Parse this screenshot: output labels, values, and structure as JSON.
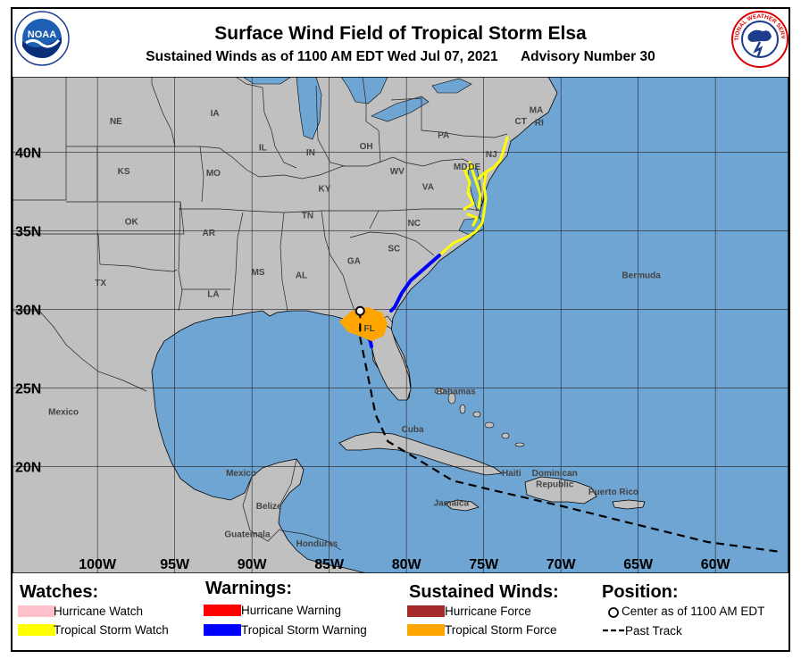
{
  "header": {
    "title": "Surface Wind Field of Tropical Storm Elsa",
    "subtitle": "Sustained Winds as of 1100 AM EDT Wed Jul 07, 2021      Advisory Number 30",
    "left_logo_text": "NOAA",
    "right_logo_text": "NATIONAL WEATHER SERVICE"
  },
  "map": {
    "lat_labels": [
      {
        "lat": 40,
        "label": "40N"
      },
      {
        "lat": 35,
        "label": "35N"
      },
      {
        "lat": 30,
        "label": "30N"
      },
      {
        "lat": 25,
        "label": "25N"
      },
      {
        "lat": 20,
        "label": "20N"
      }
    ],
    "lon_labels": [
      {
        "lon": -100,
        "label": "100W"
      },
      {
        "lon": -95,
        "label": "95W"
      },
      {
        "lon": -90,
        "label": "90W"
      },
      {
        "lon": -85,
        "label": "85W"
      },
      {
        "lon": -80,
        "label": "80W"
      },
      {
        "lon": -75,
        "label": "75W"
      },
      {
        "lon": -70,
        "label": "70W"
      },
      {
        "lon": -65,
        "label": "65W"
      },
      {
        "lon": -60,
        "label": "60W"
      }
    ],
    "place_labels": [
      {
        "name": "NE",
        "lon": -98.8,
        "lat": 41.8
      },
      {
        "name": "IA",
        "lon": -92.4,
        "lat": 42.3
      },
      {
        "name": "IL",
        "lon": -89.3,
        "lat": 40.1
      },
      {
        "name": "IN",
        "lon": -86.2,
        "lat": 39.8
      },
      {
        "name": "OH",
        "lon": -82.6,
        "lat": 40.2
      },
      {
        "name": "PA",
        "lon": -77.6,
        "lat": 40.9
      },
      {
        "name": "NJ",
        "lon": -74.5,
        "lat": 39.7
      },
      {
        "name": "MA",
        "lon": -71.6,
        "lat": 42.5
      },
      {
        "name": "CT",
        "lon": -72.6,
        "lat": 41.8
      },
      {
        "name": "RI",
        "lon": -71.4,
        "lat": 41.7
      },
      {
        "name": "MD",
        "lon": -76.5,
        "lat": 38.9
      },
      {
        "name": "DE",
        "lon": -75.6,
        "lat": 38.9
      },
      {
        "name": "KS",
        "lon": -98.3,
        "lat": 38.6
      },
      {
        "name": "MO",
        "lon": -92.5,
        "lat": 38.5
      },
      {
        "name": "WV",
        "lon": -80.6,
        "lat": 38.6
      },
      {
        "name": "VA",
        "lon": -78.6,
        "lat": 37.6
      },
      {
        "name": "KY",
        "lon": -85.3,
        "lat": 37.5
      },
      {
        "name": "TN",
        "lon": -86.4,
        "lat": 35.8
      },
      {
        "name": "NC",
        "lon": -79.5,
        "lat": 35.3
      },
      {
        "name": "OK",
        "lon": -97.8,
        "lat": 35.4
      },
      {
        "name": "AR",
        "lon": -92.8,
        "lat": 34.7
      },
      {
        "name": "SC",
        "lon": -80.8,
        "lat": 33.7
      },
      {
        "name": "TX",
        "lon": -99.8,
        "lat": 31.5
      },
      {
        "name": "MS",
        "lon": -89.6,
        "lat": 32.2
      },
      {
        "name": "AL",
        "lon": -86.8,
        "lat": 32.0
      },
      {
        "name": "GA",
        "lon": -83.4,
        "lat": 32.9
      },
      {
        "name": "LA",
        "lon": -92.5,
        "lat": 30.8
      },
      {
        "name": "FL",
        "lon": -82.4,
        "lat": 28.6
      },
      {
        "name": "Bermuda",
        "lon": -64.8,
        "lat": 32.0
      },
      {
        "name": "Bahamas",
        "lon": -76.8,
        "lat": 24.6
      },
      {
        "name": "Mexico",
        "lon": -102.2,
        "lat": 23.3
      },
      {
        "name": "Cuba",
        "lon": -79.6,
        "lat": 22.2
      },
      {
        "name": "Haiti",
        "lon": -73.2,
        "lat": 19.4
      },
      {
        "name": "Dominican",
        "lon": -70.4,
        "lat": 19.4
      },
      {
        "name": "Republic",
        "lon": -70.4,
        "lat": 18.7
      },
      {
        "name": "Puerto Rico",
        "lon": -66.6,
        "lat": 18.2
      },
      {
        "name": "Jamaica",
        "lon": -77.1,
        "lat": 17.5
      },
      {
        "name": "Mexico",
        "lon": -90.7,
        "lat": 19.4
      },
      {
        "name": "Belize",
        "lon": -88.9,
        "lat": 17.3
      },
      {
        "name": "Guatemala",
        "lon": -90.3,
        "lat": 15.5
      },
      {
        "name": "Honduras",
        "lon": -85.8,
        "lat": 14.9
      }
    ],
    "storm_center": {
      "lon": -83.0,
      "lat": 29.9
    },
    "past_track": [
      [
        -56.0,
        14.6
      ],
      [
        -60.5,
        15.2
      ],
      [
        -65.5,
        16.4
      ],
      [
        -70.0,
        17.5
      ],
      [
        -74.0,
        18.4
      ],
      [
        -77.0,
        19.1
      ],
      [
        -79.5,
        20.6
      ],
      [
        -81.2,
        21.6
      ],
      [
        -82.0,
        23.3
      ],
      [
        -82.5,
        25.8
      ],
      [
        -83.0,
        28.2
      ],
      [
        -83.0,
        29.9
      ]
    ]
  },
  "legend": {
    "watches": {
      "heading": "Watches:",
      "items": [
        {
          "label": "Hurricane Watch",
          "color": "#ffc0cb"
        },
        {
          "label": "Tropical Storm Watch",
          "color": "#ffff00"
        }
      ]
    },
    "warnings": {
      "heading": "Warnings:",
      "items": [
        {
          "label": "Hurricane Warning",
          "color": "#ff0000"
        },
        {
          "label": "Tropical Storm Warning",
          "color": "#0000ff"
        }
      ]
    },
    "winds": {
      "heading": "Sustained Winds:",
      "items": [
        {
          "label": "Hurricane Force",
          "color": "#a52a2a"
        },
        {
          "label": "Tropical Storm Force",
          "color": "#ffa500"
        }
      ]
    },
    "position": {
      "heading": "Position:",
      "items": [
        {
          "label": "Center as of 1100 AM EDT",
          "icon": "open-circle-icon"
        },
        {
          "label": "Past Track",
          "icon": "dashed-line-icon"
        }
      ]
    }
  }
}
